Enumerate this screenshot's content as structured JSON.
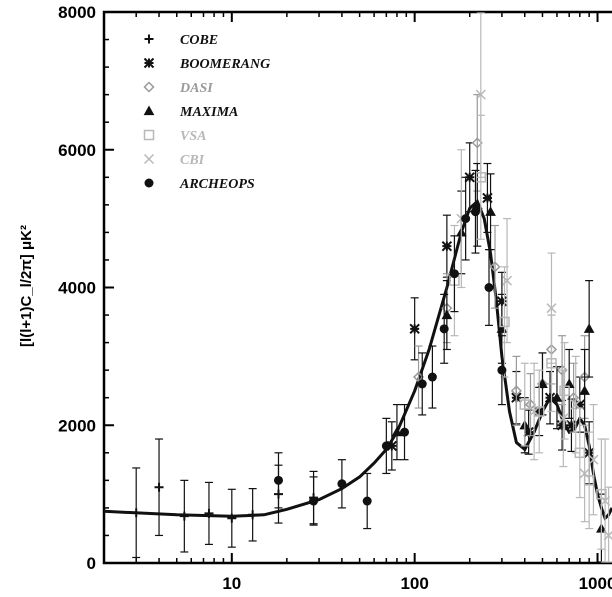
{
  "chart_data": {
    "type": "scatter",
    "title": "",
    "xlabel": "",
    "ylabel": "[l(l+1)C_l/2π] μK²",
    "x_scale": "log",
    "xlim": [
      2,
      1200
    ],
    "ylim": [
      0,
      8000
    ],
    "x_ticks": [
      10,
      100,
      1000
    ],
    "x_tick_labels": [
      "10",
      "100",
      "1000"
    ],
    "y_ticks": [
      0,
      2000,
      4000,
      6000,
      8000
    ],
    "y_tick_labels": [
      "0",
      "2000",
      "4000",
      "6000",
      "8000"
    ],
    "legend_position": "top-left",
    "colors": {
      "black": "#111111",
      "gray": "#9a9a9a",
      "light_gray": "#b8b8b8"
    },
    "series": [
      {
        "name": "COBE",
        "marker": "plus-dot",
        "color": "#111111",
        "points": [
          {
            "x": 3,
            "y": 730,
            "err": 650
          },
          {
            "x": 4,
            "y": 1100,
            "err": 700
          },
          {
            "x": 5.5,
            "y": 680,
            "err": 520
          },
          {
            "x": 7.5,
            "y": 720,
            "err": 450
          },
          {
            "x": 10,
            "y": 650,
            "err": 420
          },
          {
            "x": 13,
            "y": 700,
            "err": 380
          },
          {
            "x": 18,
            "y": 1000,
            "err": 420
          },
          {
            "x": 28,
            "y": 950,
            "err": 380
          }
        ]
      },
      {
        "name": "BOOMERANG",
        "marker": "asterisk",
        "color": "#111111",
        "points": [
          {
            "x": 75,
            "y": 1700,
            "err": 350
          },
          {
            "x": 100,
            "y": 3400,
            "err": 450
          },
          {
            "x": 150,
            "y": 4600,
            "err": 450
          },
          {
            "x": 200,
            "y": 5600,
            "err": 500
          },
          {
            "x": 250,
            "y": 5300,
            "err": 500
          },
          {
            "x": 300,
            "y": 3800,
            "err": 420
          },
          {
            "x": 360,
            "y": 2400,
            "err": 380
          },
          {
            "x": 420,
            "y": 1900,
            "err": 320
          },
          {
            "x": 480,
            "y": 2200,
            "err": 350
          },
          {
            "x": 550,
            "y": 2400,
            "err": 380
          },
          {
            "x": 640,
            "y": 2000,
            "err": 360
          },
          {
            "x": 720,
            "y": 2000,
            "err": 380
          },
          {
            "x": 800,
            "y": 2300,
            "err": 400
          },
          {
            "x": 900,
            "y": 1600,
            "err": 450
          }
        ]
      },
      {
        "name": "DASI",
        "marker": "diamond",
        "color": "#9a9a9a",
        "points": [
          {
            "x": 105,
            "y": 2700,
            "err": 450
          },
          {
            "x": 150,
            "y": 3700,
            "err": 500
          },
          {
            "x": 220,
            "y": 6100,
            "err": 700
          },
          {
            "x": 275,
            "y": 4300,
            "err": 600
          },
          {
            "x": 360,
            "y": 2500,
            "err": 500
          },
          {
            "x": 430,
            "y": 2300,
            "err": 450
          },
          {
            "x": 500,
            "y": 2600,
            "err": 450
          },
          {
            "x": 560,
            "y": 3100,
            "err": 500
          },
          {
            "x": 640,
            "y": 2800,
            "err": 500
          },
          {
            "x": 740,
            "y": 2400,
            "err": 500
          },
          {
            "x": 850,
            "y": 2700,
            "err": 600
          }
        ]
      },
      {
        "name": "MAXIMA",
        "marker": "triangle",
        "color": "#111111",
        "points": [
          {
            "x": 80,
            "y": 1900,
            "err": 400
          },
          {
            "x": 150,
            "y": 3600,
            "err": 500
          },
          {
            "x": 180,
            "y": 4800,
            "err": 600
          },
          {
            "x": 220,
            "y": 5200,
            "err": 600
          },
          {
            "x": 260,
            "y": 5100,
            "err": 550
          },
          {
            "x": 300,
            "y": 3400,
            "err": 500
          },
          {
            "x": 400,
            "y": 2000,
            "err": 400
          },
          {
            "x": 500,
            "y": 2600,
            "err": 450
          },
          {
            "x": 600,
            "y": 2400,
            "err": 450
          },
          {
            "x": 700,
            "y": 2600,
            "err": 500
          },
          {
            "x": 850,
            "y": 2500,
            "err": 600
          },
          {
            "x": 900,
            "y": 3400,
            "err": 700
          },
          {
            "x": 1050,
            "y": 500,
            "err": 500
          }
        ]
      },
      {
        "name": "VSA",
        "marker": "square",
        "color": "#b8b8b8",
        "points": [
          {
            "x": 165,
            "y": 4100,
            "err": 800
          },
          {
            "x": 230,
            "y": 5600,
            "err": 900
          },
          {
            "x": 310,
            "y": 3500,
            "err": 800
          },
          {
            "x": 400,
            "y": 2300,
            "err": 600
          },
          {
            "x": 480,
            "y": 2200,
            "err": 600
          },
          {
            "x": 560,
            "y": 2900,
            "err": 700
          },
          {
            "x": 660,
            "y": 2500,
            "err": 700
          },
          {
            "x": 800,
            "y": 1600,
            "err": 650
          },
          {
            "x": 900,
            "y": 1200,
            "err": 700
          },
          {
            "x": 1050,
            "y": 1000,
            "err": 800
          }
        ]
      },
      {
        "name": "CBI",
        "marker": "cross",
        "color": "#b8b8b8",
        "points": [
          {
            "x": 180,
            "y": 5000,
            "err": 1000
          },
          {
            "x": 230,
            "y": 6800,
            "err": 1200
          },
          {
            "x": 320,
            "y": 4100,
            "err": 900
          },
          {
            "x": 450,
            "y": 2200,
            "err": 700
          },
          {
            "x": 560,
            "y": 3700,
            "err": 800
          },
          {
            "x": 650,
            "y": 2100,
            "err": 700
          },
          {
            "x": 760,
            "y": 2300,
            "err": 700
          },
          {
            "x": 850,
            "y": 1300,
            "err": 700
          },
          {
            "x": 950,
            "y": 1500,
            "err": 800
          },
          {
            "x": 1100,
            "y": 900,
            "err": 900
          },
          {
            "x": 1150,
            "y": 400,
            "err": 700
          }
        ]
      },
      {
        "name": "ARCHEOPS",
        "marker": "filled-circle",
        "color": "#111111",
        "points": [
          {
            "x": 18,
            "y": 1200,
            "err": 400
          },
          {
            "x": 28,
            "y": 900,
            "err": 350
          },
          {
            "x": 40,
            "y": 1150,
            "err": 350
          },
          {
            "x": 55,
            "y": 900,
            "err": 400
          },
          {
            "x": 70,
            "y": 1700,
            "err": 400
          },
          {
            "x": 88,
            "y": 1900,
            "err": 400
          },
          {
            "x": 110,
            "y": 2600,
            "err": 450
          },
          {
            "x": 125,
            "y": 2700,
            "err": 450
          },
          {
            "x": 145,
            "y": 3400,
            "err": 500
          },
          {
            "x": 165,
            "y": 4200,
            "err": 550
          },
          {
            "x": 190,
            "y": 5000,
            "err": 600
          },
          {
            "x": 215,
            "y": 5100,
            "err": 600
          },
          {
            "x": 255,
            "y": 4000,
            "err": 550
          },
          {
            "x": 300,
            "y": 2800,
            "err": 500
          }
        ]
      }
    ],
    "model_curve": {
      "x": [
        2,
        5,
        10,
        15,
        20,
        30,
        40,
        50,
        60,
        70,
        80,
        100,
        120,
        150,
        180,
        200,
        220,
        240,
        260,
        280,
        300,
        330,
        360,
        400,
        450,
        500,
        550,
        600,
        650,
        700,
        750,
        800,
        850,
        900,
        950,
        1000,
        1050,
        1100,
        1150,
        1200
      ],
      "y": [
        750,
        700,
        680,
        700,
        780,
        920,
        1080,
        1250,
        1450,
        1650,
        1900,
        2500,
        3100,
        4000,
        4800,
        5150,
        5250,
        5000,
        4500,
        3800,
        3000,
        2200,
        1750,
        1650,
        1900,
        2200,
        2400,
        2300,
        2050,
        1900,
        1950,
        2100,
        2000,
        1700,
        1300,
        1000,
        800,
        650,
        700,
        800
      ]
    }
  }
}
